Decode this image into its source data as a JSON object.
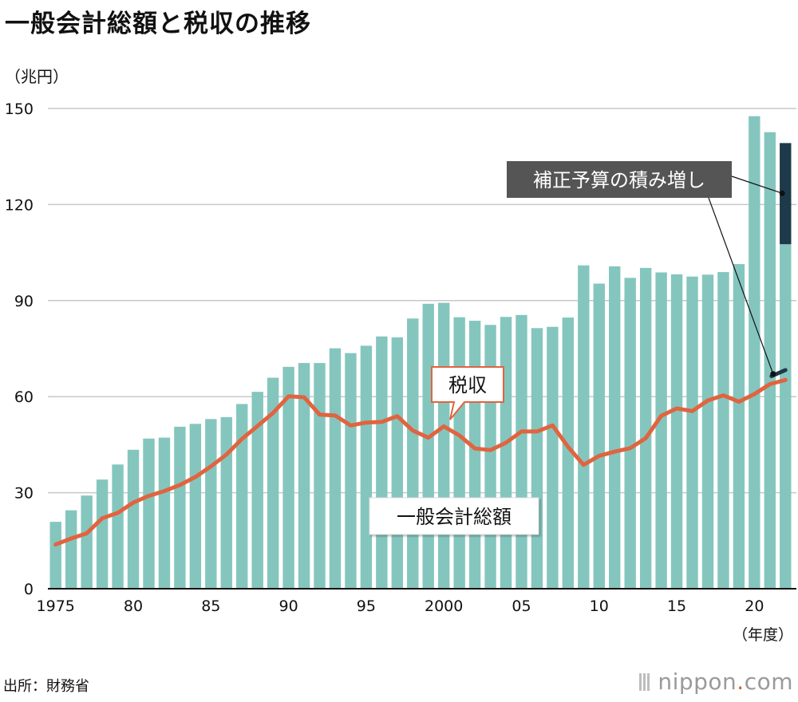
{
  "title": "一般会計総額と税収の推移",
  "unit": "（兆円）",
  "source": "出所：財務省",
  "credit": {
    "name": "nippon",
    "dot": ".",
    "tld": "com"
  },
  "colors": {
    "bar": "#84c6be",
    "tax_line": "#e0643f",
    "supplement": "#1e3a4a",
    "grid": "#c8c8c8",
    "label_box": "#555555"
  },
  "chart_data": {
    "type": "bar",
    "title": "一般会計総額と税収の推移",
    "ylabel": "（兆円）",
    "xlabel": "（年度）",
    "ylim": [
      0,
      150
    ],
    "yticks": [
      0,
      30,
      60,
      90,
      120,
      150
    ],
    "x": [
      1975,
      1976,
      1977,
      1978,
      1979,
      1980,
      1981,
      1982,
      1983,
      1984,
      1985,
      1986,
      1987,
      1988,
      1989,
      1990,
      1991,
      1992,
      1993,
      1994,
      1995,
      1996,
      1997,
      1998,
      1999,
      2000,
      2001,
      2002,
      2003,
      2004,
      2005,
      2006,
      2007,
      2008,
      2009,
      2010,
      2011,
      2012,
      2013,
      2014,
      2015,
      2016,
      2017,
      2018,
      2019,
      2020,
      2021,
      2022
    ],
    "xtick_values": [
      1975,
      1980,
      1985,
      1990,
      1995,
      2000,
      2005,
      2010,
      2015,
      2020
    ],
    "xtick_labels": [
      "1975",
      "80",
      "85",
      "90",
      "95",
      "2000",
      "05",
      "10",
      "15",
      "20"
    ],
    "series": [
      {
        "name": "一般会計総額",
        "type": "bar",
        "values": [
          20.9,
          24.5,
          29.1,
          34.1,
          38.8,
          43.4,
          46.9,
          47.2,
          50.6,
          51.5,
          53.0,
          53.6,
          57.7,
          61.5,
          65.9,
          69.3,
          70.5,
          70.5,
          75.1,
          73.6,
          75.9,
          78.8,
          78.5,
          84.4,
          89.0,
          89.3,
          84.8,
          83.7,
          82.4,
          84.9,
          85.5,
          81.4,
          81.8,
          84.7,
          101.0,
          95.3,
          100.7,
          97.1,
          100.2,
          98.8,
          98.2,
          97.5,
          98.1,
          98.9,
          101.4,
          147.6,
          142.6,
          107.6
        ]
      },
      {
        "name": "税収",
        "type": "line",
        "values": [
          13.8,
          15.7,
          17.3,
          22.0,
          23.7,
          26.9,
          29.0,
          30.5,
          32.4,
          34.9,
          38.2,
          41.9,
          46.8,
          50.8,
          54.9,
          60.1,
          59.8,
          54.4,
          54.1,
          51.0,
          51.9,
          52.1,
          53.9,
          49.4,
          47.2,
          50.7,
          47.9,
          43.8,
          43.3,
          45.6,
          49.1,
          49.1,
          51.0,
          44.3,
          38.7,
          41.5,
          42.8,
          43.9,
          47.0,
          54.0,
          56.3,
          55.5,
          58.8,
          60.4,
          58.4,
          60.8,
          63.9,
          65.2
        ]
      },
      {
        "name": "補正予算の積み増し",
        "type": "stacked",
        "year": 2022,
        "base": 107.6,
        "top": 139.2,
        "tax_base": 65.2,
        "tax_top": 68.3
      }
    ],
    "annotations": [
      {
        "text": "一般会計総額"
      },
      {
        "text": "税収"
      },
      {
        "text": "補正予算の積み増し"
      }
    ]
  }
}
